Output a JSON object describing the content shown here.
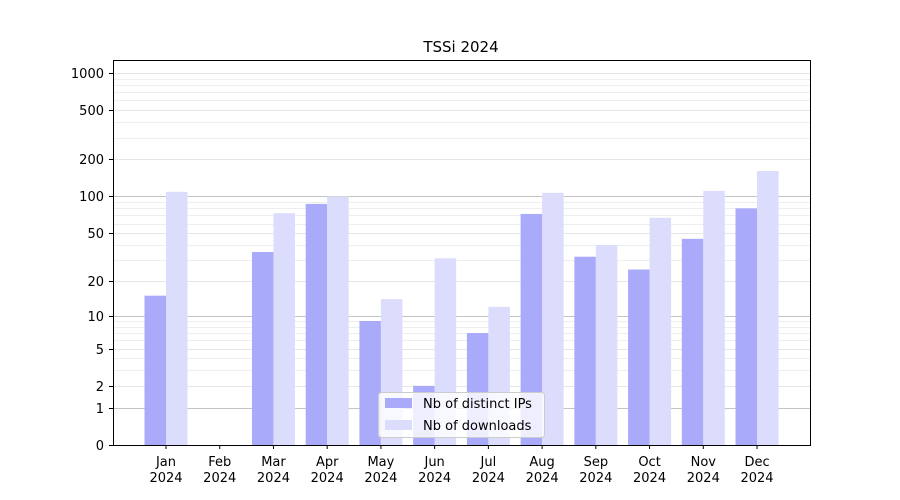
{
  "chart_data": {
    "type": "bar",
    "title": "TSSi 2024",
    "xlabel": "",
    "ylabel": "",
    "yscale": "log10(1+y)",
    "ylim": [
      0,
      1270
    ],
    "yticks": [
      0,
      1,
      2,
      5,
      10,
      20,
      50,
      100,
      200,
      500,
      1000
    ],
    "ytick_labels": [
      "0",
      "1",
      "2",
      "5",
      "10",
      "20",
      "50",
      "100",
      "200",
      "500",
      "1000"
    ],
    "categories": [
      "Jan\n2024",
      "Feb\n2024",
      "Mar\n2024",
      "Apr\n2024",
      "May\n2024",
      "Jun\n2024",
      "Jul\n2024",
      "Aug\n2024",
      "Sep\n2024",
      "Oct\n2024",
      "Nov\n2024",
      "Dec\n2024"
    ],
    "category_months": [
      "Jan",
      "Feb",
      "Mar",
      "Apr",
      "May",
      "Jun",
      "Jul",
      "Aug",
      "Sep",
      "Oct",
      "Nov",
      "Dec"
    ],
    "category_year": "2024",
    "series": [
      {
        "name": "Nb of distinct IPs",
        "color": "#aaaafa",
        "values": [
          15,
          0,
          35,
          87,
          9,
          2,
          7,
          72,
          32,
          25,
          45,
          80
        ]
      },
      {
        "name": "Nb of downloads",
        "color": "#dcdcfc",
        "values": [
          109,
          0,
          73,
          100,
          14,
          31,
          12,
          107,
          40,
          67,
          111,
          161
        ]
      }
    ],
    "grid": true,
    "legend": "lower-center"
  }
}
